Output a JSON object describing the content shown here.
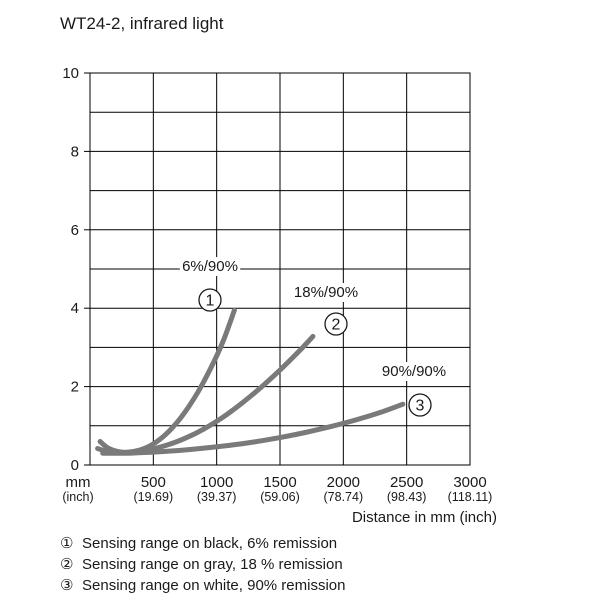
{
  "chart_data": {
    "type": "line",
    "title": "WT24-2, infrared light",
    "xlabel": "Distance in mm (inch)",
    "ylabel": "",
    "xlim": [
      0,
      3000
    ],
    "ylim": [
      0,
      10
    ],
    "x_ticks": [
      {
        "value": 0,
        "label": "mm",
        "sublabel": "(inch)"
      },
      {
        "value": 500,
        "label": "500",
        "sublabel": "(19.69)"
      },
      {
        "value": 1000,
        "label": "1000",
        "sublabel": "(39.37)"
      },
      {
        "value": 1500,
        "label": "1500",
        "sublabel": "(59.06)"
      },
      {
        "value": 2000,
        "label": "2000",
        "sublabel": "(78.74)"
      },
      {
        "value": 2500,
        "label": "2500",
        "sublabel": "(98.43)"
      },
      {
        "value": 3000,
        "label": "3000",
        "sublabel": "(118.11)"
      }
    ],
    "y_ticks": [
      {
        "value": 0,
        "label": "0"
      },
      {
        "value": 2,
        "label": "2"
      },
      {
        "value": 4,
        "label": "4"
      },
      {
        "value": 6,
        "label": "6"
      },
      {
        "value": 8,
        "label": "8"
      },
      {
        "value": 10,
        "label": "10"
      }
    ],
    "grid": true,
    "series": [
      {
        "name": "1",
        "marker": "①",
        "label": "6%/90%",
        "color": "#7a7a7a",
        "x": [
          80,
          150,
          250,
          350,
          450,
          550,
          650,
          750,
          850,
          950,
          1050,
          1140
        ],
        "y": [
          0.6,
          0.42,
          0.33,
          0.35,
          0.45,
          0.65,
          0.95,
          1.35,
          1.85,
          2.45,
          3.15,
          3.95
        ]
      },
      {
        "name": "2",
        "marker": "②",
        "label": "18%/90%",
        "color": "#7a7a7a",
        "x": [
          60,
          150,
          300,
          450,
          600,
          750,
          900,
          1050,
          1200,
          1350,
          1500,
          1650,
          1760
        ],
        "y": [
          0.42,
          0.34,
          0.32,
          0.38,
          0.5,
          0.68,
          0.92,
          1.22,
          1.58,
          1.98,
          2.42,
          2.9,
          3.28
        ]
      },
      {
        "name": "3",
        "marker": "③",
        "label": "90%/90%",
        "color": "#7a7a7a",
        "x": [
          100,
          300,
          500,
          700,
          900,
          1100,
          1300,
          1500,
          1700,
          1900,
          2100,
          2300,
          2470
        ],
        "y": [
          0.3,
          0.3,
          0.33,
          0.37,
          0.43,
          0.5,
          0.59,
          0.7,
          0.83,
          0.98,
          1.15,
          1.35,
          1.55
        ]
      }
    ],
    "annotations": [
      {
        "series": "1",
        "text": "6%/90%"
      },
      {
        "series": "2",
        "text": "18%/90%"
      },
      {
        "series": "3",
        "text": "90%/90%"
      }
    ]
  },
  "legend": [
    {
      "marker": "①",
      "text": "Sensing range on black, 6% remission"
    },
    {
      "marker": "②",
      "text": "Sensing range on gray, 18 % remission"
    },
    {
      "marker": "③",
      "text": "Sensing range on white, 90% remission"
    }
  ]
}
